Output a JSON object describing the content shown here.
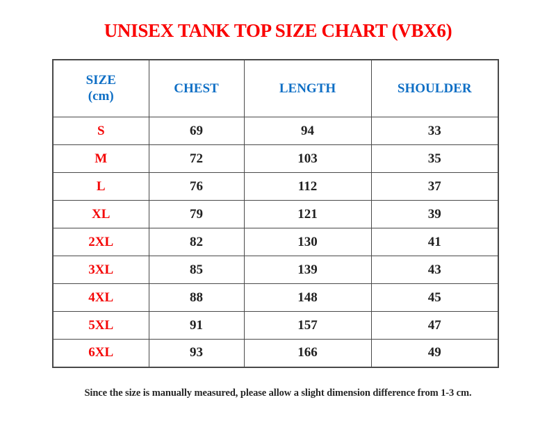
{
  "page": {
    "title": "UNISEX TANK TOP SIZE CHART (VBX6)",
    "footnote": "Since the size is manually measured, please allow a slight dimension difference from 1-3 cm."
  },
  "colors": {
    "title_red": "#fa0000",
    "size_label_red": "#f40606",
    "header_blue": "#0f6fc5",
    "value_black": "#212121",
    "border_gray": "#484848",
    "background": "#ffffff"
  },
  "table": {
    "columns": [
      "SIZE\n(cm)",
      "CHEST",
      "LENGTH",
      "SHOULDER"
    ],
    "rows": [
      {
        "size": "S",
        "chest": "69",
        "length": "94",
        "shoulder": "33"
      },
      {
        "size": "M",
        "chest": "72",
        "length": "103",
        "shoulder": "35"
      },
      {
        "size": "L",
        "chest": "76",
        "length": "112",
        "shoulder": "37"
      },
      {
        "size": "XL",
        "chest": "79",
        "length": "121",
        "shoulder": "39"
      },
      {
        "size": "2XL",
        "chest": "82",
        "length": "130",
        "shoulder": "41"
      },
      {
        "size": "3XL",
        "chest": "85",
        "length": "139",
        "shoulder": "43"
      },
      {
        "size": "4XL",
        "chest": "88",
        "length": "148",
        "shoulder": "45"
      },
      {
        "size": "5XL",
        "chest": "91",
        "length": "157",
        "shoulder": "47"
      },
      {
        "size": "6XL",
        "chest": "93",
        "length": "166",
        "shoulder": "49"
      }
    ]
  }
}
